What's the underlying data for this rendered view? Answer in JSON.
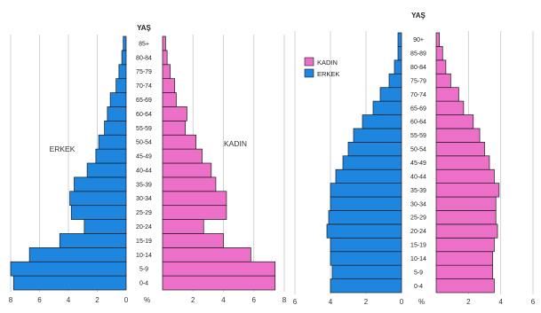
{
  "colors": {
    "male": "#1f86e0",
    "female": "#ec6fc8",
    "grid": "#c8c8c8",
    "stroke": "#1a1a1a"
  },
  "chart_data": [
    {
      "type": "bar",
      "subtype": "population-pyramid",
      "age_axis_label": "YAŞ",
      "unit_label": "%",
      "side_labels": {
        "male": "ERKEK",
        "female": "KADIN"
      },
      "categories": [
        "0-4",
        "5-9",
        "10-14",
        "15-19",
        "20-24",
        "25-29",
        "30-34",
        "35-39",
        "40-44",
        "45-49",
        "50-54",
        "55-59",
        "60-64",
        "65-69",
        "70-74",
        "75-79",
        "80-84",
        "85+"
      ],
      "series": [
        {
          "name": "ERKEK",
          "values": [
            7.8,
            8.0,
            6.7,
            4.6,
            2.9,
            3.8,
            3.9,
            3.6,
            2.7,
            2.1,
            1.9,
            1.5,
            1.3,
            1.1,
            0.7,
            0.5,
            0.3,
            0.2
          ]
        },
        {
          "name": "KADIN",
          "values": [
            7.4,
            7.4,
            5.8,
            4.0,
            2.7,
            4.2,
            4.2,
            3.5,
            3.2,
            2.6,
            2.2,
            1.5,
            1.6,
            0.9,
            0.8,
            0.5,
            0.3,
            0.2
          ]
        }
      ],
      "x_ticks": [
        "8",
        "6",
        "4",
        "2",
        "0",
        "%",
        "2",
        "4",
        "6",
        "8"
      ],
      "xlim": [
        -8,
        8
      ],
      "legend": "none",
      "grid": true
    },
    {
      "type": "bar",
      "subtype": "population-pyramid",
      "age_axis_label": "YAŞ",
      "unit_label": "%",
      "categories": [
        "0-4",
        "5-9",
        "10-14",
        "15-19",
        "20-24",
        "25-29",
        "30-34",
        "35-39",
        "40-44",
        "45-49",
        "50-54",
        "55-59",
        "60-64",
        "65-69",
        "70-74",
        "75-79",
        "80-84",
        "85-89",
        "90+"
      ],
      "series": [
        {
          "name": "ERKEK",
          "values": [
            4.0,
            3.9,
            4.0,
            4.0,
            4.2,
            4.1,
            4.0,
            4.0,
            3.7,
            3.3,
            3.0,
            2.7,
            2.2,
            1.6,
            1.2,
            0.7,
            0.4,
            0.2,
            0.2
          ]
        },
        {
          "name": "KADIN",
          "values": [
            3.6,
            3.5,
            3.5,
            3.6,
            3.8,
            3.7,
            3.7,
            3.9,
            3.6,
            3.3,
            3.0,
            2.7,
            2.3,
            1.7,
            1.4,
            0.9,
            0.6,
            0.4,
            0.2
          ]
        }
      ],
      "x_ticks": [
        "6",
        "4",
        "2",
        "0",
        "%",
        "2",
        "4",
        "6"
      ],
      "xlim": [
        -6,
        6
      ],
      "legend": "top-left",
      "legend_entries": [
        "KADIN",
        "ERKEK"
      ],
      "grid": true
    }
  ]
}
